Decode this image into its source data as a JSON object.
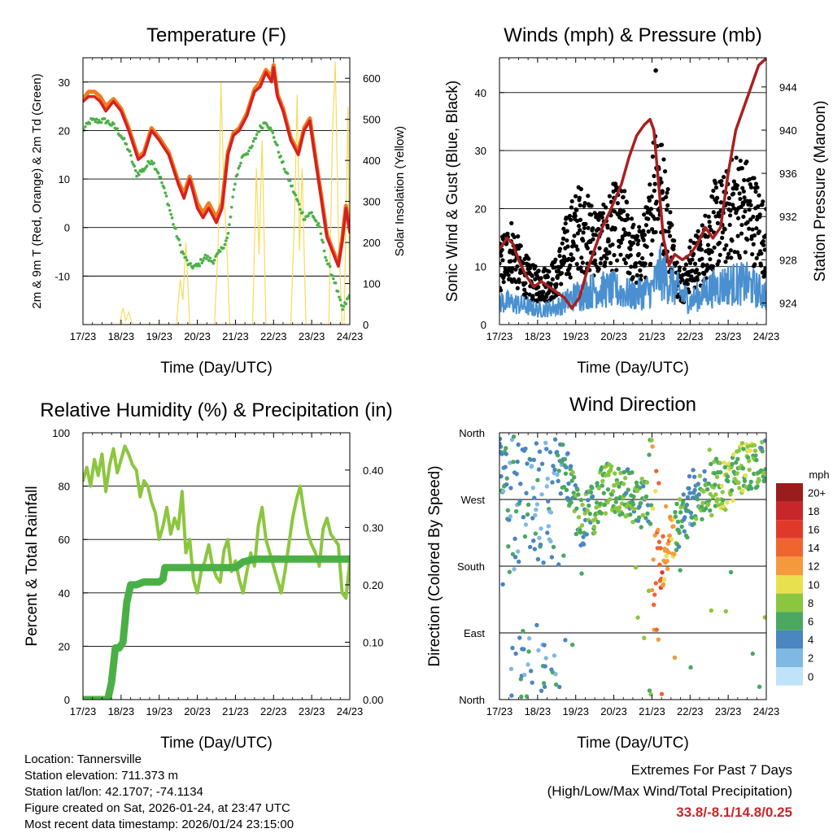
{
  "chart_data": [
    {
      "type": "line",
      "title": "Temperature (F)",
      "xlabel": "Time (Day/UTC)",
      "ylabel": "2m & 9m T (Red, Orange) & 2m Td (Green)",
      "y2label": "Solar Insolation (Yellow)",
      "x_ticks": [
        "17/23",
        "18/23",
        "19/23",
        "20/23",
        "21/23",
        "22/23",
        "23/23",
        "24/23"
      ],
      "xlim": [
        0,
        7
      ],
      "ylim": [
        -20,
        35
      ],
      "y_ticks": [
        -10,
        0,
        10,
        20,
        30
      ],
      "y2lim": [
        0,
        650
      ],
      "y2_ticks": [
        0,
        100,
        200,
        300,
        400,
        500,
        600
      ],
      "series": [
        {
          "name": "2m T",
          "color": "#d62020",
          "axis": "left",
          "x": [
            0,
            0.15,
            0.3,
            0.45,
            0.6,
            0.8,
            1.0,
            1.2,
            1.45,
            1.6,
            1.8,
            2.0,
            2.25,
            2.5,
            2.65,
            2.8,
            3.0,
            3.15,
            3.3,
            3.5,
            3.65,
            3.8,
            3.95,
            4.1,
            4.3,
            4.5,
            4.65,
            4.8,
            4.95,
            5.0,
            5.1,
            5.25,
            5.45,
            5.65,
            5.8,
            5.95,
            6.1,
            6.25,
            6.4,
            6.55,
            6.7,
            6.8,
            6.9,
            7.0
          ],
          "values": [
            26,
            27,
            27,
            26,
            24,
            26,
            24,
            20,
            14,
            15,
            20,
            18,
            15,
            9,
            6,
            10,
            4,
            2,
            4,
            1,
            4,
            15,
            19,
            20,
            23,
            28,
            29,
            32,
            30,
            33,
            27,
            24,
            18,
            15,
            20,
            22,
            14,
            6,
            -2,
            -5,
            -8,
            -3,
            4,
            -1
          ]
        },
        {
          "name": "9m T",
          "color": "#f07c1e",
          "axis": "left",
          "x": [
            0,
            0.15,
            0.3,
            0.45,
            0.6,
            0.8,
            1.0,
            1.2,
            1.45,
            1.6,
            1.8,
            2.0,
            2.25,
            2.5,
            2.65,
            2.8,
            3.0,
            3.15,
            3.3,
            3.5,
            3.65,
            3.8,
            3.95,
            4.1,
            4.3,
            4.5,
            4.65,
            4.8,
            4.95,
            5.0,
            5.1,
            5.25,
            5.45,
            5.65,
            5.8,
            5.95,
            6.1,
            6.25,
            6.4,
            6.55,
            6.7,
            6.8,
            6.9,
            7.0
          ],
          "values": [
            26.5,
            28,
            28,
            27,
            25,
            26.5,
            24.5,
            20.5,
            14.5,
            15.5,
            20.5,
            18.5,
            15.5,
            9.5,
            7,
            10.5,
            5,
            3,
            5,
            2,
            5,
            15.5,
            19.5,
            20.5,
            23.5,
            28.5,
            30,
            32.5,
            31,
            33.5,
            27.5,
            24.5,
            18.5,
            15.5,
            20.5,
            22.5,
            14.5,
            6.5,
            -1.5,
            -4.5,
            -7.5,
            -2.5,
            4.5,
            -0.5
          ]
        },
        {
          "name": "2m Td",
          "color": "#4ab046",
          "axis": "left",
          "x": [
            0,
            0.2,
            0.4,
            0.6,
            0.8,
            1.0,
            1.2,
            1.4,
            1.6,
            1.8,
            2.0,
            2.2,
            2.4,
            2.6,
            2.8,
            3.0,
            3.2,
            3.4,
            3.6,
            3.8,
            4.0,
            4.2,
            4.4,
            4.6,
            4.8,
            5.0,
            5.2,
            5.4,
            5.6,
            5.8,
            6.0,
            6.2,
            6.4,
            6.6,
            6.8,
            7.0
          ],
          "values": [
            20,
            22,
            22,
            22,
            21,
            19,
            16,
            11,
            12,
            14,
            11,
            6,
            0,
            -5,
            -8,
            -8,
            -6,
            -7,
            -5,
            -2,
            10,
            15,
            16,
            20,
            22,
            19,
            14,
            10,
            6,
            2,
            3,
            0,
            -7,
            -11,
            -17,
            -14
          ]
        },
        {
          "name": "Solar Insolation",
          "color": "#f5dc5a",
          "axis": "right",
          "x": [
            0.95,
            1.05,
            1.12,
            1.2,
            1.3,
            2.45,
            2.55,
            2.62,
            2.7,
            2.8,
            3.45,
            3.55,
            3.62,
            3.7,
            3.78,
            3.85,
            4.45,
            4.55,
            4.62,
            4.7,
            4.8,
            5.45,
            5.55,
            5.62,
            5.68,
            5.75,
            5.85,
            6.45,
            6.55,
            6.62,
            6.7,
            6.8,
            6.85,
            6.95,
            7.0
          ],
          "values": [
            0,
            40,
            10,
            30,
            0,
            0,
            110,
            60,
            200,
            0,
            0,
            200,
            590,
            320,
            180,
            0,
            0,
            380,
            170,
            450,
            0,
            0,
            260,
            560,
            180,
            380,
            0,
            0,
            480,
            640,
            230,
            0,
            0,
            530,
            0
          ]
        }
      ]
    },
    {
      "type": "scatter",
      "title": "Winds (mph) & Pressure (mb)",
      "xlabel": "Time (Day/UTC)",
      "ylabel": "Sonic Wind & Gust (Blue, Black)",
      "y2label": "Station Pressure (Maroon)",
      "x_ticks": [
        "17/23",
        "18/23",
        "19/23",
        "20/23",
        "21/23",
        "22/23",
        "23/23",
        "24/23"
      ],
      "xlim": [
        0,
        7
      ],
      "ylim": [
        0,
        46
      ],
      "y_ticks": [
        0,
        10,
        20,
        30,
        40
      ],
      "y2lim": [
        922,
        946.7
      ],
      "y2_ticks": [
        924,
        928,
        932,
        936,
        940,
        944
      ],
      "series": [
        {
          "name": "Gust envelope (approx. mean)",
          "color": "#000000",
          "axis": "left",
          "x": [
            0,
            0.3,
            0.6,
            0.9,
            1.2,
            1.5,
            1.8,
            2.1,
            2.4,
            2.7,
            3.0,
            3.3,
            3.6,
            3.9,
            4.1,
            4.2,
            4.4,
            4.6,
            4.8,
            5.0,
            5.3,
            5.6,
            5.9,
            6.2,
            6.5,
            6.8,
            7.0
          ],
          "values": [
            10,
            13,
            9,
            7,
            7,
            8,
            14,
            17,
            15,
            14,
            17,
            16,
            11,
            15,
            28,
            24,
            18,
            10,
            6,
            10,
            12,
            17,
            18,
            21,
            20,
            17,
            14
          ]
        },
        {
          "name": "Sonic Wind (approx. mean)",
          "color": "#4a90d0",
          "axis": "left",
          "x": [
            0,
            0.5,
            1.0,
            1.5,
            2.0,
            2.5,
            3.0,
            3.5,
            4.0,
            4.2,
            4.5,
            5.0,
            5.5,
            6.0,
            6.5,
            7.0
          ],
          "values": [
            4,
            3.5,
            2.5,
            3,
            5,
            6,
            6,
            5,
            6,
            9,
            7,
            4,
            6,
            7,
            7,
            5
          ]
        },
        {
          "name": "Station Pressure",
          "color": "#a82020",
          "axis": "right",
          "x": [
            0,
            0.2,
            0.35,
            0.5,
            0.7,
            0.9,
            1.1,
            1.3,
            1.5,
            1.7,
            1.9,
            2.1,
            2.3,
            2.5,
            2.7,
            2.9,
            3.2,
            3.4,
            3.6,
            3.8,
            3.95,
            4.05,
            4.15,
            4.3,
            4.45,
            4.6,
            4.8,
            5.0,
            5.2,
            5.4,
            5.6,
            5.8,
            6.0,
            6.2,
            6.4,
            6.6,
            6.8,
            6.95,
            7.0
          ],
          "values": [
            929,
            930,
            929.5,
            928,
            926.5,
            925.5,
            926,
            925.5,
            925,
            924.5,
            923.5,
            924.5,
            927,
            929,
            931,
            932.5,
            935,
            937.5,
            939.5,
            940.5,
            941,
            940,
            936,
            930,
            927.5,
            928.5,
            928,
            928.5,
            929.5,
            931,
            930,
            931,
            936,
            940,
            942,
            944,
            946,
            946.5,
            946.6
          ]
        }
      ]
    },
    {
      "type": "line",
      "title": "Relative Humidity (%) & Precipitation (in)",
      "xlabel": "Time (Day/UTC)",
      "ylabel": "Percent & Total Rainfall",
      "x_ticks": [
        "17/23",
        "18/23",
        "19/23",
        "20/23",
        "21/23",
        "22/23",
        "23/23",
        "24/23"
      ],
      "xlim": [
        0,
        7
      ],
      "ylim": [
        0,
        100
      ],
      "y_ticks": [
        0,
        20,
        40,
        60,
        80,
        100
      ],
      "y2lim": [
        0,
        0.465
      ],
      "y2_ticks": [
        "0.00",
        "0.10",
        "0.20",
        "0.30",
        "0.40"
      ],
      "series": [
        {
          "name": "Relative Humidity",
          "color": "#8cc63f",
          "axis": "left",
          "x": [
            0,
            0.1,
            0.2,
            0.3,
            0.4,
            0.5,
            0.6,
            0.7,
            0.8,
            0.9,
            1.0,
            1.1,
            1.2,
            1.3,
            1.4,
            1.5,
            1.6,
            1.7,
            1.8,
            1.9,
            2.0,
            2.1,
            2.2,
            2.3,
            2.4,
            2.5,
            2.6,
            2.7,
            2.8,
            2.9,
            3.0,
            3.1,
            3.2,
            3.3,
            3.4,
            3.5,
            3.6,
            3.7,
            3.8,
            3.9,
            4.0,
            4.1,
            4.2,
            4.3,
            4.4,
            4.5,
            4.6,
            4.7,
            4.8,
            4.9,
            5.0,
            5.1,
            5.2,
            5.3,
            5.4,
            5.5,
            5.6,
            5.7,
            5.8,
            5.9,
            6.0,
            6.1,
            6.2,
            6.3,
            6.4,
            6.5,
            6.6,
            6.7,
            6.8,
            6.9,
            7.0
          ],
          "values": [
            82,
            87,
            80,
            90,
            84,
            92,
            78,
            88,
            94,
            85,
            90,
            95,
            92,
            88,
            86,
            76,
            82,
            80,
            74,
            70,
            60,
            65,
            72,
            62,
            68,
            64,
            78,
            55,
            60,
            45,
            40,
            48,
            52,
            58,
            50,
            46,
            44,
            56,
            60,
            48,
            52,
            45,
            40,
            48,
            55,
            50,
            65,
            72,
            60,
            55,
            50,
            45,
            40,
            48,
            58,
            68,
            75,
            80,
            70,
            62,
            58,
            55,
            50,
            64,
            68,
            62,
            60,
            58,
            40,
            38,
            52
          ]
        },
        {
          "name": "Total Rainfall",
          "color": "#4ab046",
          "axis": "right",
          "x": [
            0,
            0.3,
            0.65,
            0.75,
            0.85,
            0.95,
            1.05,
            1.15,
            1.25,
            1.4,
            1.6,
            2.0,
            2.1,
            2.15,
            2.3,
            3.0,
            3.5,
            4.0,
            4.2,
            4.5,
            5.0,
            6.0,
            7.0
          ],
          "values": [
            0,
            0,
            0,
            0.03,
            0.09,
            0.09,
            0.1,
            0.17,
            0.2,
            0.2,
            0.205,
            0.205,
            0.21,
            0.23,
            0.23,
            0.23,
            0.23,
            0.23,
            0.24,
            0.245,
            0.245,
            0.245,
            0.245
          ]
        }
      ]
    },
    {
      "type": "scatter",
      "title": "Wind Direction",
      "xlabel": "Time (Day/UTC)",
      "ylabel": "Direction (Colored By Speed)",
      "x_ticks": [
        "17/23",
        "18/23",
        "19/23",
        "20/23",
        "21/23",
        "22/23",
        "23/23",
        "24/23"
      ],
      "xlim": [
        0,
        7
      ],
      "ylim": [
        0,
        360
      ],
      "y_ticks": [
        "North",
        "East",
        "South",
        "West",
        "North"
      ],
      "colorbar_label": "mph",
      "colorbar_levels": [
        "20+",
        "18",
        "16",
        "14",
        "12",
        "10",
        "8",
        "6",
        "4",
        "2",
        "0"
      ],
      "colorbar_colors": [
        "#9b1c1c",
        "#c8262a",
        "#e0392b",
        "#f06430",
        "#f59a3c",
        "#e9e050",
        "#8cc63f",
        "#4aa860",
        "#4a86c0",
        "#80b8e4",
        "#bfe3f8"
      ],
      "series": [
        {
          "name": "Direction band (approx. center)",
          "axis": "left",
          "x": [
            0,
            0.3,
            0.6,
            0.9,
            1.2,
            1.5,
            1.8,
            2.1,
            2.4,
            2.7,
            3.0,
            3.3,
            3.6,
            3.9,
            4.1,
            4.3,
            4.5,
            4.7,
            4.9,
            5.1,
            5.3,
            5.6,
            5.9,
            6.2,
            6.5,
            6.8,
            7.0
          ],
          "values": [
            320,
            300,
            330,
            320,
            325,
            320,
            300,
            240,
            250,
            280,
            285,
            280,
            270,
            260,
            175,
            190,
            215,
            240,
            250,
            265,
            275,
            295,
            290,
            300,
            320,
            310,
            330
          ]
        }
      ]
    }
  ],
  "info": {
    "location": "Location: Tannersville",
    "elevation": "Station elevation: 711.373 m",
    "latlon": "Station lat/lon: 42.1707; -74.1134",
    "created": "Figure created on Sat, 2026-01-24, at 23:47 UTC",
    "recent": "Most recent data timestamp: 2026/01/24 23:15:00"
  },
  "extremes": {
    "title": "Extremes For Past 7 Days",
    "subtitle": "(High/Low/Max Wind/Total Precipitation)",
    "values": "33.8/-8.1/14.8/0.25"
  }
}
